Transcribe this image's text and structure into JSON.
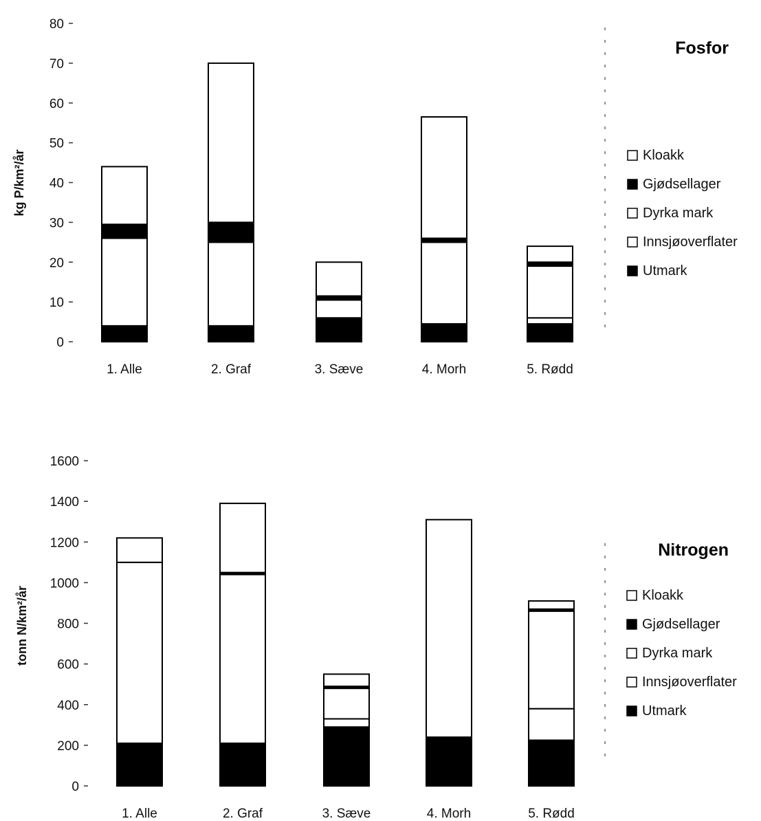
{
  "chart_data": [
    {
      "type": "bar",
      "stacked": true,
      "title": "Fosfor",
      "ylabel": "kg P/km²/år",
      "ylim": [
        0,
        80
      ],
      "yticks": [
        "0",
        "10",
        "20",
        "30",
        "40",
        "50",
        "60",
        "70",
        "80"
      ],
      "categories": [
        "1. Alle",
        "2. Graf",
        "3. Sæve",
        "4. Morh",
        "5. Rødd"
      ],
      "legend": [
        "Kloakk",
        "Gjødsellager",
        "Dyrka mark",
        "Innsjøoverflater",
        "Utmark"
      ],
      "legend_position": "right",
      "series": [
        {
          "name": "Utmark",
          "values": [
            4,
            4,
            6,
            4.5,
            4.5
          ]
        },
        {
          "name": "Innsjøoverflater",
          "values": [
            0,
            0,
            0,
            0,
            1.5
          ]
        },
        {
          "name": "Dyrka mark",
          "values": [
            22,
            21,
            4.5,
            20.5,
            13
          ]
        },
        {
          "name": "Gjødsellager",
          "values": [
            3.5,
            5,
            1,
            1,
            1
          ]
        },
        {
          "name": "Kloakk",
          "values": [
            14.5,
            40,
            8.5,
            30.5,
            4
          ]
        }
      ]
    },
    {
      "type": "bar",
      "stacked": true,
      "title": "Nitrogen",
      "ylabel": "tonn N/km²/år",
      "ylim": [
        0,
        1600
      ],
      "yticks": [
        "0",
        "200",
        "400",
        "600",
        "800",
        "1000",
        "1200",
        "1400",
        "1600"
      ],
      "categories": [
        "1. Alle",
        "2. Graf",
        "3. Sæve",
        "4. Morh",
        "5. Rødd"
      ],
      "legend": [
        "Kloakk",
        "Gjødsellager",
        "Dyrka mark",
        "Innsjøoverflater",
        "Utmark"
      ],
      "legend_position": "right",
      "series": [
        {
          "name": "Utmark",
          "values": [
            210,
            210,
            290,
            240,
            225
          ]
        },
        {
          "name": "Innsjøoverflater",
          "values": [
            0,
            0,
            40,
            0,
            155
          ]
        },
        {
          "name": "Dyrka mark",
          "values": [
            890,
            830,
            150,
            1070,
            480
          ]
        },
        {
          "name": "Gjødsellager",
          "values": [
            0,
            10,
            10,
            0,
            10
          ]
        },
        {
          "name": "Kloakk",
          "values": [
            120,
            340,
            60,
            0,
            40
          ]
        }
      ]
    }
  ]
}
